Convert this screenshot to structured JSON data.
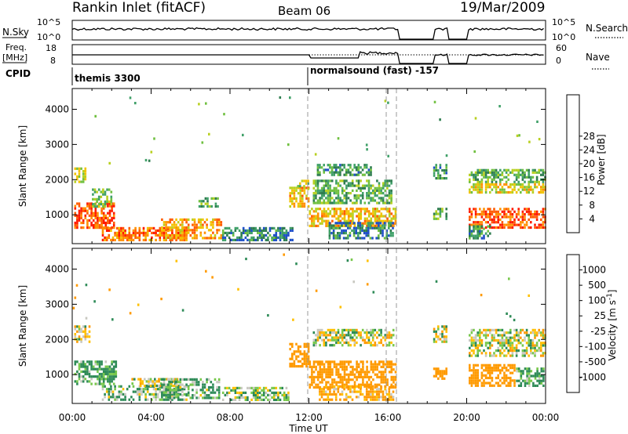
{
  "header": {
    "station": "Rankin Inlet (fitACF)",
    "beam": "Beam 06",
    "date": "19/Mar/2009"
  },
  "time_axis": {
    "label": "Time UT",
    "ticks": [
      "00:00",
      "04:00",
      "08:00",
      "12:00",
      "16:00",
      "20:00",
      "00:00"
    ],
    "range_hours": [
      0,
      24
    ]
  },
  "summary_panels": {
    "nsky": {
      "label": "N.Sky",
      "ticks": [
        "10^5",
        "10^0"
      ]
    },
    "nsearch": {
      "label": "N.Search",
      "ticks": [
        "10^5",
        "10^0"
      ]
    },
    "freq": {
      "label_line1": "Freq.",
      "label_line2": "[MHz]",
      "ticks": [
        "18",
        "8"
      ]
    },
    "nave": {
      "label": "Nave",
      "ticks": [
        "60",
        "0"
      ]
    },
    "cpid": {
      "label": "CPID",
      "segments": [
        {
          "start_h": 0,
          "text": "themis 3300"
        },
        {
          "start_h": 12,
          "text": "normalsound (fast) -157"
        }
      ]
    }
  },
  "data_gaps_hours": [
    [
      16.5,
      18.3
    ],
    [
      19.0,
      20.1
    ]
  ],
  "chart_data": [
    {
      "type": "heatmap",
      "parameter": "Power",
      "xlabel": "Time UT",
      "ylabel": "Slant Range [km]",
      "y_ticks": [
        1000,
        2000,
        3000,
        4000
      ],
      "ylim": [
        180,
        4590
      ],
      "xlim": [
        0,
        24
      ],
      "colorbar": {
        "label": "Power [dB]",
        "ticks": [
          "4",
          "8",
          "12",
          "16",
          "20",
          "24",
          "28"
        ],
        "colors": [
          "#1a1aff",
          "#2050c8",
          "#2e7d4f",
          "#3fa068",
          "#70c040",
          "#b8d020",
          "#f2c200",
          "#ff9000",
          "#ff5a00",
          "#ff1a00"
        ]
      },
      "scatter_bands": [
        {
          "t0": 0.1,
          "t1": 2.2,
          "r0": 600,
          "r1": 1350,
          "value": 26
        },
        {
          "t0": 0.1,
          "t1": 0.7,
          "r0": 1900,
          "r1": 2350,
          "value": 16
        },
        {
          "t0": 1.0,
          "t1": 2.0,
          "r0": 1200,
          "r1": 1750,
          "value": 14
        },
        {
          "t0": 1.5,
          "t1": 5.8,
          "r0": 250,
          "r1": 650,
          "value": 24
        },
        {
          "t0": 4.5,
          "t1": 7.6,
          "r0": 300,
          "r1": 900,
          "value": 22
        },
        {
          "t0": 6.4,
          "t1": 7.4,
          "r0": 1200,
          "r1": 1500,
          "value": 12
        },
        {
          "t0": 7.6,
          "t1": 11.2,
          "r0": 250,
          "r1": 650,
          "value": 8
        },
        {
          "t0": 11.0,
          "t1": 12.0,
          "r0": 1200,
          "r1": 1800,
          "value": 20
        },
        {
          "t0": 11.4,
          "t1": 12.0,
          "r0": 1700,
          "r1": 2000,
          "value": 14
        },
        {
          "t0": 12.0,
          "t1": 16.4,
          "r0": 650,
          "r1": 1200,
          "value": 20
        },
        {
          "t0": 12.2,
          "t1": 16.2,
          "r0": 1300,
          "r1": 2000,
          "value": 12
        },
        {
          "t0": 12.4,
          "t1": 15.2,
          "r0": 2100,
          "r1": 2450,
          "value": 10
        },
        {
          "t0": 13.0,
          "t1": 16.3,
          "r0": 300,
          "r1": 800,
          "value": 8
        },
        {
          "t0": 18.3,
          "t1": 19.0,
          "r0": 2000,
          "r1": 2450,
          "value": 10
        },
        {
          "t0": 18.3,
          "t1": 19.0,
          "r0": 850,
          "r1": 1200,
          "value": 12
        },
        {
          "t0": 20.1,
          "t1": 24.0,
          "r0": 1900,
          "r1": 2300,
          "value": 12
        },
        {
          "t0": 20.1,
          "t1": 24.0,
          "r0": 1600,
          "r1": 1900,
          "value": 18
        },
        {
          "t0": 20.1,
          "t1": 24.0,
          "r0": 600,
          "r1": 1200,
          "value": 26
        },
        {
          "t0": 20.1,
          "t1": 21.2,
          "r0": 300,
          "r1": 700,
          "value": 10
        }
      ]
    },
    {
      "type": "heatmap",
      "parameter": "Velocity",
      "xlabel": "Time UT",
      "ylabel": "Slant Range [km]",
      "y_ticks": [
        1000,
        2000,
        3000,
        4000
      ],
      "ylim": [
        180,
        4590
      ],
      "xlim": [
        0,
        24
      ],
      "colorbar": {
        "label": "Velocity [m s^-1]",
        "ticks": [
          "-1000",
          "-500",
          "-100",
          "-25",
          "25",
          "100",
          "500",
          "1000"
        ],
        "colors": [
          "#ff1a00",
          "#ff5a00",
          "#ff9a00",
          "#ffc000",
          "#c8c8c0",
          "#78c84c",
          "#2e8b57",
          "#3a70b0",
          "#1a1aff"
        ]
      },
      "scatter_bands": [
        {
          "t0": 0.1,
          "t1": 0.9,
          "r0": 1900,
          "r1": 2400,
          "value": 0
        },
        {
          "t0": 0.1,
          "t1": 2.3,
          "r0": 700,
          "r1": 1400,
          "value": 150
        },
        {
          "t0": 1.5,
          "t1": 6.0,
          "r0": 250,
          "r1": 700,
          "value": 100
        },
        {
          "t0": 3.0,
          "t1": 5.5,
          "r0": 650,
          "r1": 900,
          "value": 0
        },
        {
          "t0": 4.5,
          "t1": 7.5,
          "r0": 300,
          "r1": 900,
          "value": 120
        },
        {
          "t0": 7.6,
          "t1": 11.0,
          "r0": 250,
          "r1": 650,
          "value": 60
        },
        {
          "t0": 11.0,
          "t1": 12.0,
          "r0": 1200,
          "r1": 1900,
          "value": -300
        },
        {
          "t0": 12.0,
          "t1": 16.4,
          "r0": 600,
          "r1": 1400,
          "value": -300
        },
        {
          "t0": 12.2,
          "t1": 16.3,
          "r0": 1800,
          "r1": 2300,
          "value": 0
        },
        {
          "t0": 12.5,
          "t1": 16.3,
          "r0": 250,
          "r1": 700,
          "value": -150
        },
        {
          "t0": 18.3,
          "t1": 19.0,
          "r0": 1900,
          "r1": 2400,
          "value": 0
        },
        {
          "t0": 18.3,
          "t1": 19.0,
          "r0": 850,
          "r1": 1200,
          "value": -300
        },
        {
          "t0": 20.1,
          "t1": 24.0,
          "r0": 1500,
          "r1": 2300,
          "value": 0
        },
        {
          "t0": 20.1,
          "t1": 22.5,
          "r0": 650,
          "r1": 1300,
          "value": -250
        },
        {
          "t0": 22.5,
          "t1": 24.0,
          "r0": 650,
          "r1": 1200,
          "value": 150
        }
      ]
    }
  ]
}
